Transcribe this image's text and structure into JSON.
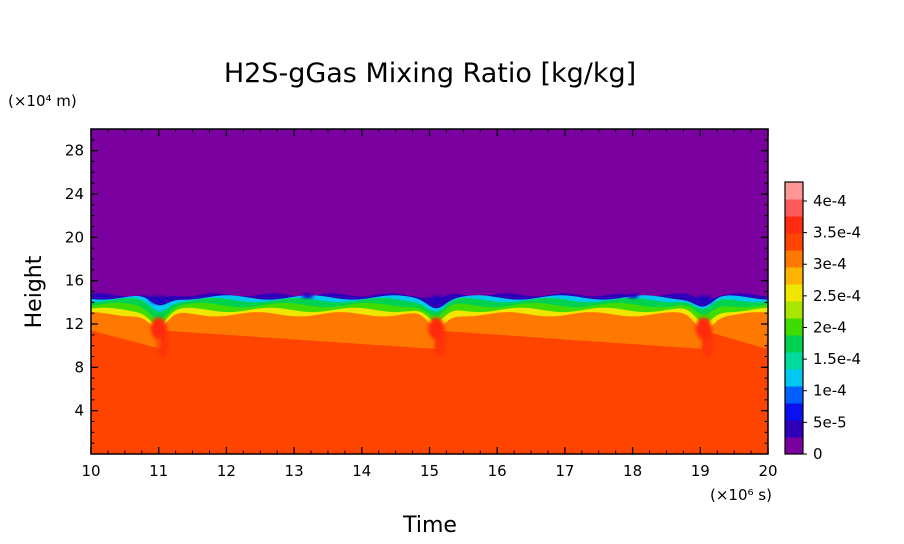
{
  "chart_data": {
    "type": "heatmap",
    "title": "H2S-gGas Mixing Ratio [kg/kg]",
    "xlabel": "Time",
    "ylabel": "Height",
    "x_unit": "(×10⁶ s)",
    "y_unit": "(×10⁴ m)",
    "xlim": [
      10,
      20
    ],
    "ylim": [
      0,
      30
    ],
    "x_ticks": [
      10,
      11,
      12,
      13,
      14,
      15,
      16,
      17,
      18,
      19,
      20
    ],
    "y_ticks": [
      4,
      8,
      12,
      16,
      20,
      24,
      28
    ],
    "grid": false,
    "colorbar": {
      "min": 0,
      "max": 0.00043,
      "labels": [
        {
          "value": 0,
          "text": "0"
        },
        {
          "value": 5e-05,
          "text": "5e-5"
        },
        {
          "value": 0.0001,
          "text": "1e-4"
        },
        {
          "value": 0.00015,
          "text": "1.5e-4"
        },
        {
          "value": 0.0002,
          "text": "2e-4"
        },
        {
          "value": 0.00025,
          "text": "2.5e-4"
        },
        {
          "value": 0.0003,
          "text": "3e-4"
        },
        {
          "value": 0.00035,
          "text": "3.5e-4"
        },
        {
          "value": 0.0004,
          "text": "4e-4"
        }
      ],
      "palette": [
        "#7a00a0",
        "#3000b8",
        "#0a10ee",
        "#0060ff",
        "#00c8f0",
        "#00dca0",
        "#00d250",
        "#40dc00",
        "#a8e600",
        "#f0e600",
        "#ffb400",
        "#ff7800",
        "#ff4400",
        "#ff2a10",
        "#ff5a5a",
        "#ff9696"
      ]
    },
    "fields": {
      "upper_value": 0,
      "lower_value": 0.00034,
      "layer_top_height": 14.7,
      "descent_times": [
        11.0,
        15.1,
        19.05
      ],
      "weak_dip_times": [
        13.2,
        18.0
      ]
    }
  }
}
